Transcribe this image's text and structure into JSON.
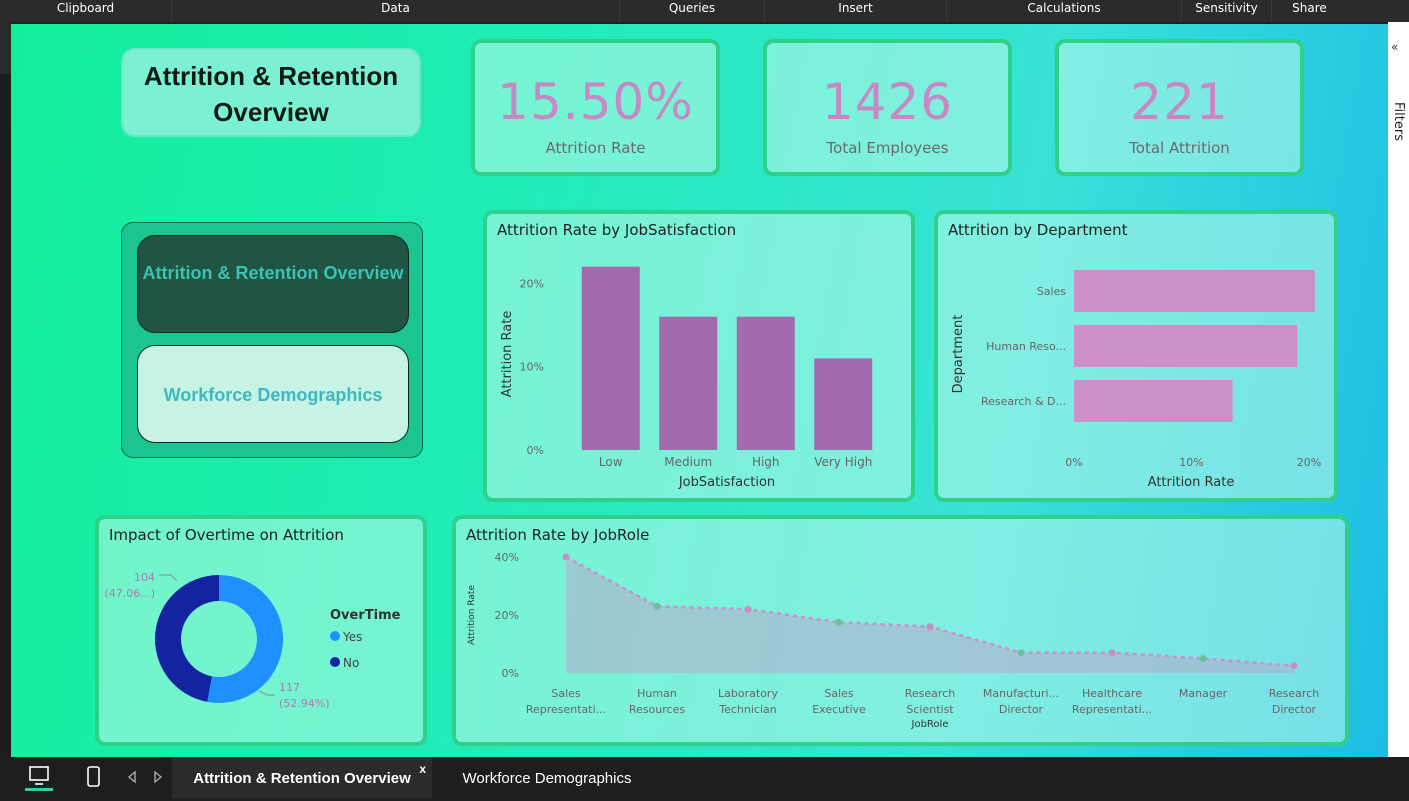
{
  "ribbon": {
    "tabs": [
      "Clipboard",
      "Data",
      "Queries",
      "Insert",
      "Calculations",
      "Sensitivity",
      "Share"
    ]
  },
  "filters_pane": {
    "label": "Filters",
    "chevron": "«"
  },
  "title_box": {
    "text": "Attrition & Retention Overview"
  },
  "kpis": [
    {
      "value": "15.50%",
      "label": "Attrition Rate"
    },
    {
      "value": "1426",
      "label": "Total Employees"
    },
    {
      "value": "221",
      "label": "Total Attrition"
    }
  ],
  "nav": {
    "active_label": "Attrition & Retention Overview",
    "other_label": "Workforce Demographics"
  },
  "charts": {
    "jobsat": {
      "title": "Attrition Rate by JobSatisfaction",
      "ylabel": "Attrition Rate",
      "xlabel": "JobSatisfaction",
      "ticks": [
        "20%",
        "10%",
        "0%"
      ]
    },
    "dept": {
      "title": "Attrition by Department",
      "ylabel": "Department",
      "xlabel": "Attrition Rate",
      "ticks": [
        "0%",
        "10%",
        "20%"
      ]
    },
    "overtime": {
      "title": "Impact of Overtime on Attrition",
      "legend_title": "OverTime",
      "label_no": "104\n(47.06...)",
      "label_yes": "117\n(52.94%)"
    },
    "jobrole": {
      "title": "Attrition Rate by JobRole",
      "ylabel": "Attrition Rate",
      "xlabel": "JobRole",
      "ticks": [
        "40%",
        "20%",
        "0%"
      ]
    }
  },
  "chart_data": [
    {
      "type": "bar",
      "title": "Attrition Rate by JobSatisfaction",
      "categories": [
        "Low",
        "Medium",
        "High",
        "Very High"
      ],
      "values": [
        22,
        16,
        16,
        11
      ],
      "unit": "%",
      "xlabel": "JobSatisfaction",
      "ylabel": "Attrition Rate",
      "ylim": [
        0,
        24
      ],
      "color": "#a46ab0"
    },
    {
      "type": "bar",
      "orientation": "horizontal",
      "title": "Attrition by Department",
      "categories": [
        "Sales",
        "Human Reso...",
        "Research & D..."
      ],
      "values": [
        20.5,
        19,
        13.5
      ],
      "unit": "%",
      "xlabel": "Attrition Rate",
      "ylabel": "Department",
      "xlim": [
        0,
        20
      ],
      "color": "#cc90c8"
    },
    {
      "type": "pie",
      "style": "donut",
      "title": "Impact of Overtime on Attrition",
      "legend_title": "OverTime",
      "slices": [
        {
          "name": "Yes",
          "value": 117,
          "percent": 52.94,
          "color": "#1e90ff"
        },
        {
          "name": "No",
          "value": 104,
          "percent": 47.06,
          "color": "#1424a0"
        }
      ]
    },
    {
      "type": "area",
      "title": "Attrition Rate by JobRole",
      "categories": [
        "Sales Representati...",
        "Human Resources",
        "Laboratory Technician",
        "Sales Executive",
        "Research Scientist",
        "Manufacturi... Director",
        "Healthcare Representati...",
        "Manager",
        "Research Director"
      ],
      "values": [
        40,
        23,
        22,
        17.5,
        16,
        7,
        7,
        5,
        2.5
      ],
      "unit": "%",
      "xlabel": "JobRole",
      "ylabel": "Attrition Rate",
      "ylim": [
        0,
        40
      ],
      "line_color": "#cc90c8"
    }
  ],
  "page_tabs": {
    "active": "Attrition & Retention Overview",
    "other": "Workforce Demographics",
    "close": "x"
  },
  "colors": {
    "kpi_value": "#c789c4",
    "card_border": "#2fd08a",
    "bar_purple": "#a46ab0",
    "bar_pink": "#cc90c8"
  }
}
